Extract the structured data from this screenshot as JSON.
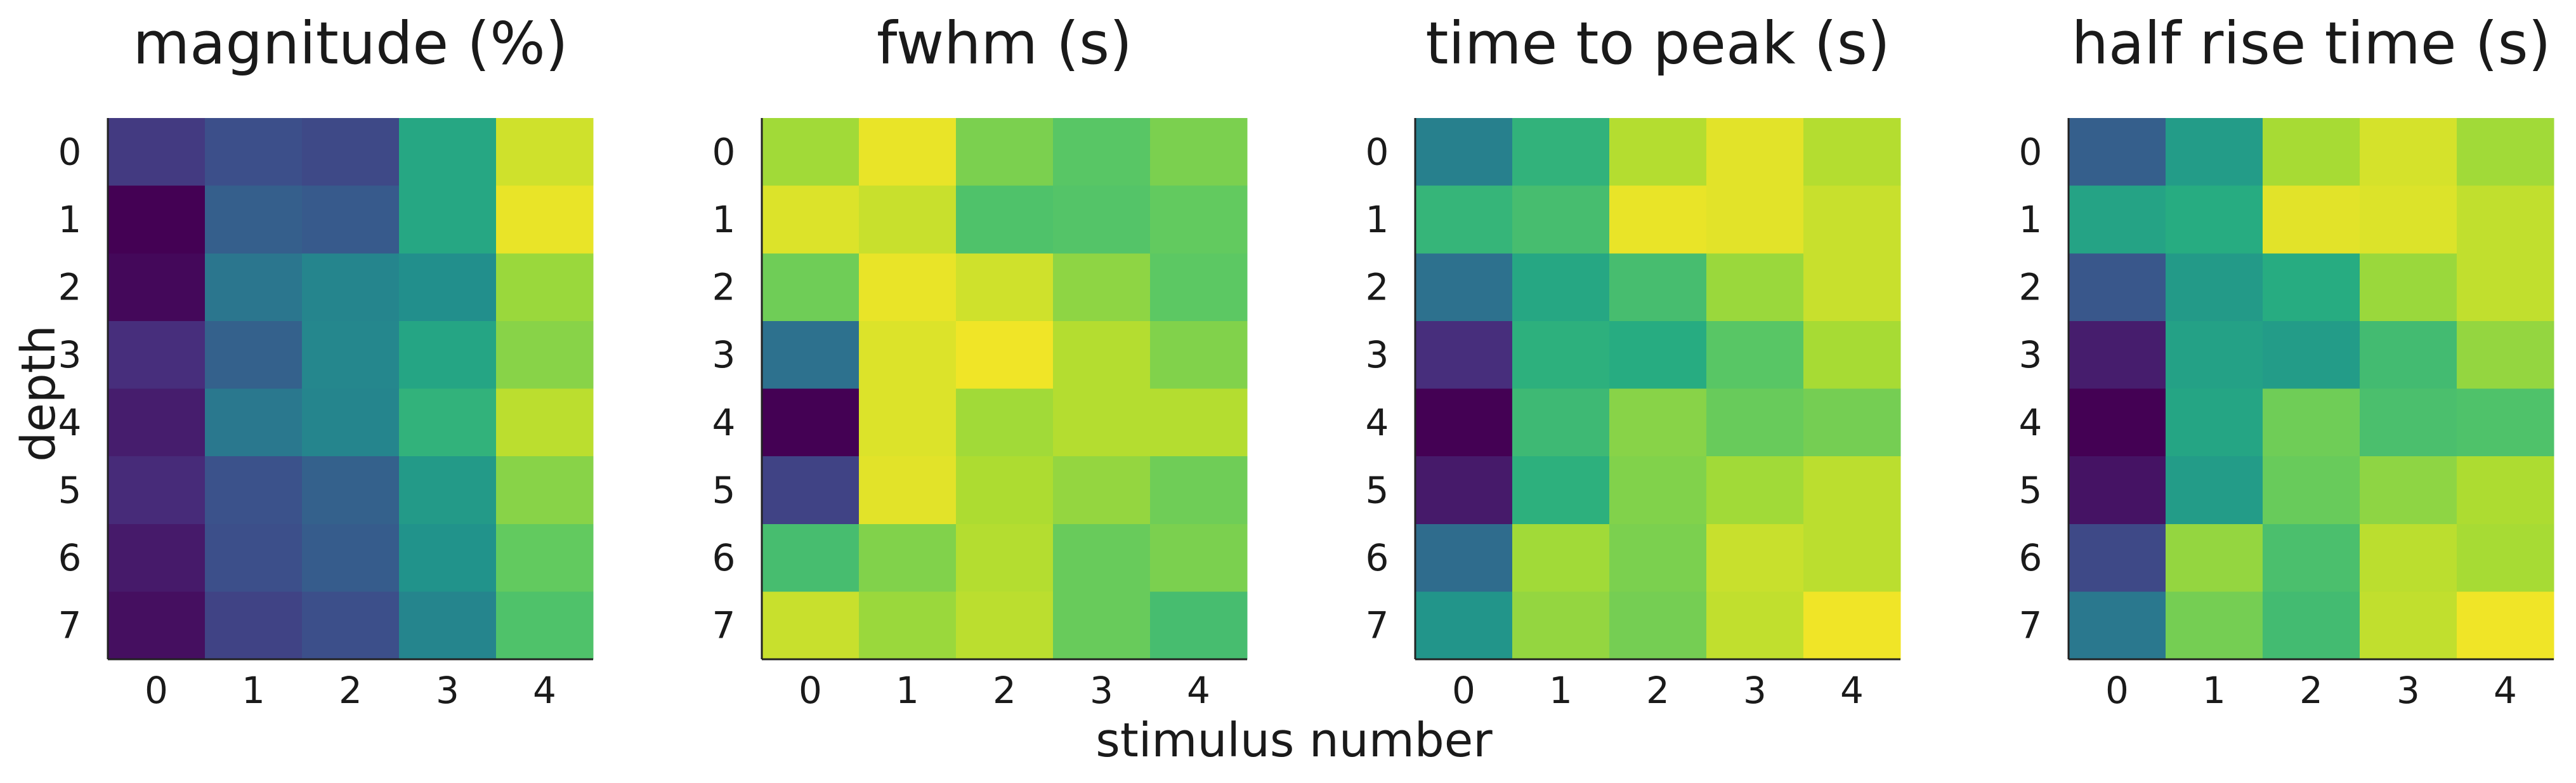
{
  "figure": {
    "xlabel": "stimulus number",
    "ylabel": "depth",
    "colormap": "viridis"
  },
  "chart_data": [
    {
      "type": "heatmap",
      "title": "magnitude (%)",
      "x": [
        0,
        1,
        2,
        3,
        4
      ],
      "y": [
        0,
        1,
        2,
        3,
        4,
        5,
        6,
        7
      ],
      "values": [
        [
          0.17,
          0.24,
          0.22,
          0.6,
          0.93
        ],
        [
          0.0,
          0.3,
          0.28,
          0.6,
          0.97
        ],
        [
          0.02,
          0.39,
          0.45,
          0.49,
          0.85
        ],
        [
          0.13,
          0.31,
          0.46,
          0.59,
          0.82
        ],
        [
          0.08,
          0.4,
          0.45,
          0.65,
          0.9
        ],
        [
          0.12,
          0.25,
          0.31,
          0.54,
          0.82
        ],
        [
          0.07,
          0.24,
          0.29,
          0.51,
          0.76
        ],
        [
          0.04,
          0.2,
          0.24,
          0.45,
          0.72
        ]
      ],
      "xticks": [
        "0",
        "1",
        "2",
        "3",
        "4"
      ],
      "yticks": [
        "0",
        "1",
        "2",
        "3",
        "4",
        "5",
        "6",
        "7"
      ]
    },
    {
      "type": "heatmap",
      "title": "fwhm (s)",
      "x": [
        0,
        1,
        2,
        3,
        4
      ],
      "y": [
        0,
        1,
        2,
        3,
        4,
        5,
        6,
        7
      ],
      "values": [
        [
          0.86,
          0.97,
          0.8,
          0.74,
          0.8
        ],
        [
          0.95,
          0.92,
          0.72,
          0.73,
          0.76
        ],
        [
          0.78,
          0.97,
          0.93,
          0.83,
          0.75
        ],
        [
          0.37,
          0.95,
          0.98,
          0.89,
          0.81
        ],
        [
          0.0,
          0.95,
          0.86,
          0.89,
          0.89
        ],
        [
          0.2,
          0.96,
          0.88,
          0.84,
          0.78
        ],
        [
          0.7,
          0.81,
          0.89,
          0.77,
          0.8
        ],
        [
          0.92,
          0.85,
          0.9,
          0.77,
          0.7
        ]
      ],
      "xticks": [
        "0",
        "1",
        "2",
        "3",
        "4"
      ],
      "yticks": [
        "0",
        "1",
        "2",
        "3",
        "4",
        "5",
        "6",
        "7"
      ]
    },
    {
      "type": "heatmap",
      "title": "time to peak (s)",
      "x": [
        0,
        1,
        2,
        3,
        4
      ],
      "y": [
        0,
        1,
        2,
        3,
        4,
        5,
        6,
        7
      ],
      "values": [
        [
          0.43,
          0.65,
          0.89,
          0.96,
          0.89
        ],
        [
          0.66,
          0.7,
          0.97,
          0.96,
          0.92
        ],
        [
          0.37,
          0.6,
          0.7,
          0.85,
          0.92
        ],
        [
          0.13,
          0.64,
          0.62,
          0.74,
          0.87
        ],
        [
          0.0,
          0.68,
          0.82,
          0.77,
          0.79
        ],
        [
          0.07,
          0.64,
          0.81,
          0.86,
          0.9
        ],
        [
          0.35,
          0.86,
          0.8,
          0.92,
          0.9
        ],
        [
          0.52,
          0.84,
          0.79,
          0.91,
          0.98
        ]
      ],
      "xticks": [
        "0",
        "1",
        "2",
        "3",
        "4"
      ],
      "yticks": [
        "0",
        "1",
        "2",
        "3",
        "4",
        "5",
        "6",
        "7"
      ]
    },
    {
      "type": "heatmap",
      "title": "half rise time (s)",
      "x": [
        0,
        1,
        2,
        3,
        4
      ],
      "y": [
        0,
        1,
        2,
        3,
        4,
        5,
        6,
        7
      ],
      "values": [
        [
          0.3,
          0.55,
          0.87,
          0.94,
          0.86
        ],
        [
          0.58,
          0.62,
          0.96,
          0.95,
          0.91
        ],
        [
          0.27,
          0.54,
          0.62,
          0.85,
          0.91
        ],
        [
          0.08,
          0.57,
          0.55,
          0.69,
          0.84
        ],
        [
          0.0,
          0.59,
          0.78,
          0.71,
          0.72
        ],
        [
          0.05,
          0.55,
          0.77,
          0.83,
          0.88
        ],
        [
          0.22,
          0.84,
          0.71,
          0.9,
          0.87
        ],
        [
          0.4,
          0.79,
          0.69,
          0.91,
          0.98
        ]
      ],
      "xticks": [
        "0",
        "1",
        "2",
        "3",
        "4"
      ],
      "yticks": [
        "0",
        "1",
        "2",
        "3",
        "4",
        "5",
        "6",
        "7"
      ]
    }
  ]
}
